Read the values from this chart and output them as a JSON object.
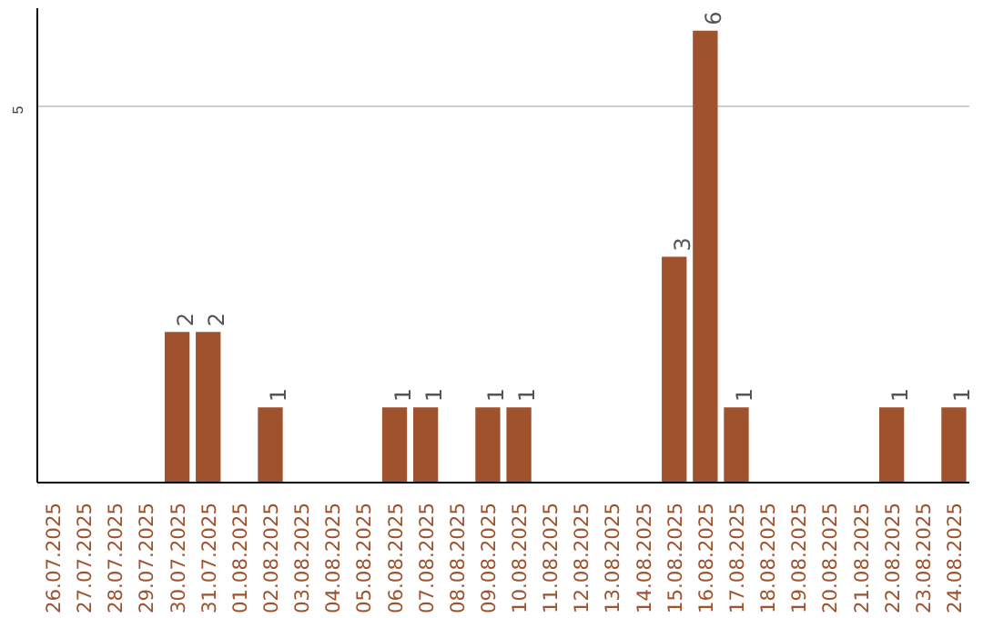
{
  "chart_data": {
    "type": "bar",
    "categories": [
      "26.07.2025",
      "27.07.2025",
      "28.07.2025",
      "29.07.2025",
      "30.07.2025",
      "31.07.2025",
      "01.08.2025",
      "02.08.2025",
      "03.08.2025",
      "04.08.2025",
      "05.08.2025",
      "06.08.2025",
      "07.08.2025",
      "08.08.2025",
      "09.08.2025",
      "10.08.2025",
      "11.08.2025",
      "12.08.2025",
      "13.08.2025",
      "14.08.2025",
      "15.08.2025",
      "16.08.2025",
      "17.08.2025",
      "18.08.2025",
      "19.08.2025",
      "20.08.2025",
      "21.08.2025",
      "22.08.2025",
      "23.08.2025",
      "24.08.2025"
    ],
    "values": [
      0,
      0,
      0,
      0,
      2,
      2,
      0,
      1,
      0,
      0,
      0,
      1,
      1,
      0,
      1,
      1,
      0,
      0,
      0,
      0,
      3,
      6,
      1,
      0,
      0,
      0,
      0,
      1,
      0,
      1
    ],
    "value_labels": [
      null,
      null,
      null,
      null,
      "2",
      "2",
      null,
      "1",
      null,
      null,
      null,
      "1",
      "1",
      null,
      "1",
      "1",
      null,
      null,
      null,
      null,
      "3",
      "6",
      "1",
      null,
      null,
      null,
      null,
      "1",
      null,
      "1"
    ],
    "color": "#a0522d",
    "ylim": [
      0,
      6.3
    ],
    "yticks": [
      5
    ],
    "grid": "y"
  }
}
